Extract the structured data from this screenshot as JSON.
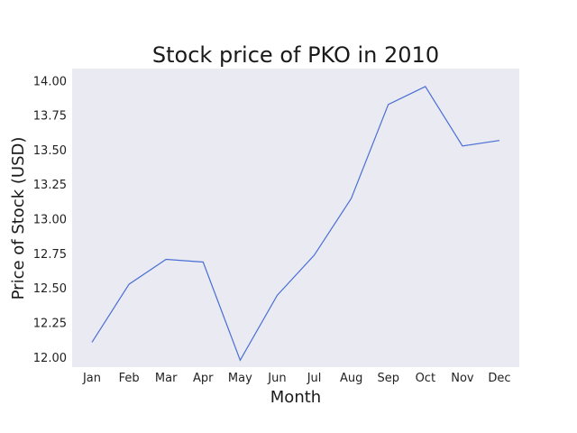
{
  "chart_data": {
    "type": "line",
    "title": "Stock price of PKO in 2010",
    "xlabel": "Month",
    "ylabel": "Price of Stock (USD)",
    "categories": [
      "Jan",
      "Feb",
      "Mar",
      "Apr",
      "May",
      "Jun",
      "Jul",
      "Aug",
      "Sep",
      "Oct",
      "Nov",
      "Dec"
    ],
    "series": [
      {
        "values": [
          12.11,
          12.53,
          12.71,
          12.69,
          11.98,
          12.45,
          12.74,
          13.15,
          13.83,
          13.96,
          13.53,
          13.57
        ]
      }
    ],
    "ylim": [
      11.93,
      14.09
    ],
    "yticks": [
      12.0,
      12.25,
      12.5,
      12.75,
      13.0,
      13.25,
      13.5,
      13.75,
      14.0
    ],
    "ytick_labels": [
      "12.00",
      "12.25",
      "12.50",
      "12.75",
      "13.00",
      "13.25",
      "13.50",
      "13.75",
      "14.00"
    ],
    "grid": false,
    "legend": "none",
    "colors": {
      "line": "#4a6fd4",
      "plot_background": "#eaeaf2"
    }
  }
}
